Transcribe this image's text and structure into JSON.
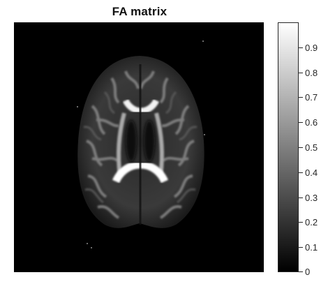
{
  "figure": {
    "title": "FA matrix"
  },
  "colorbar": {
    "ticks": [
      "0",
      "0.1",
      "0.2",
      "0.3",
      "0.4",
      "0.5",
      "0.6",
      "0.7",
      "0.8",
      "0.9"
    ],
    "tick_values": [
      0,
      0.1,
      0.2,
      0.3,
      0.4,
      0.5,
      0.6,
      0.7,
      0.8,
      0.9
    ],
    "range": [
      0,
      1
    ],
    "colormap": "gray"
  },
  "image": {
    "description_icon": "brain-fa-map-icon",
    "background_color": "#000000"
  }
}
